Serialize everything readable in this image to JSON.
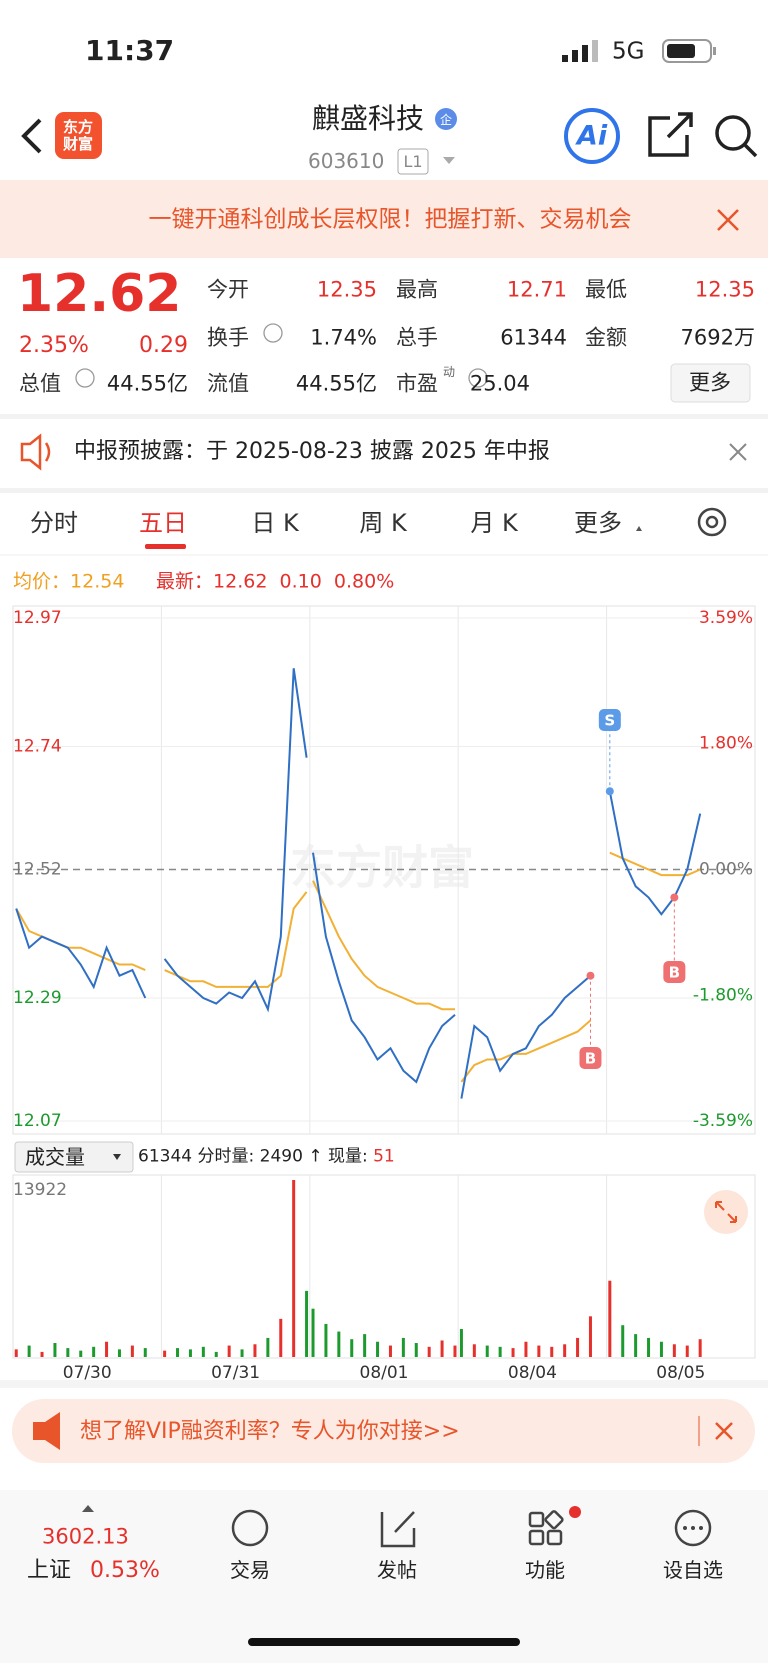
{
  "status_bar": {
    "time": "11:37",
    "network": "5G"
  },
  "header": {
    "logo": "东方财富",
    "title": "麒盛科技",
    "badge": "企",
    "code": "603610",
    "level": "L1",
    "ai": "Ai"
  },
  "banner": {
    "text": "一键开通科创成长层权限！把握打新、交易机会"
  },
  "quote": {
    "price": "12.62",
    "change_pct": "2.35%",
    "change": "0.29",
    "fields": [
      {
        "label": "今开",
        "value": "12.35"
      },
      {
        "label": "最高",
        "value": "12.71"
      },
      {
        "label": "最低",
        "value": "12.35"
      },
      {
        "label": "换手",
        "value": "1.74%"
      },
      {
        "label": "总手",
        "value": "61344"
      },
      {
        "label": "金额",
        "value": "7692万"
      },
      {
        "label": "总值",
        "value": "44.55亿"
      },
      {
        "label": "流值",
        "value": "44.55亿"
      },
      {
        "label": "市盈",
        "sup": "动",
        "value": "25.04"
      }
    ],
    "more": "更多"
  },
  "notice": {
    "text": "中报预披露：于 2025-08-23 披露 2025 年中报"
  },
  "tabs": {
    "items": [
      "分时",
      "五日",
      "日 K",
      "周 K",
      "月 K",
      "更多"
    ],
    "active": 1
  },
  "legend": {
    "avg_label": "均价：",
    "avg": "12.54",
    "last_label": "最新：",
    "last": "12.62",
    "change": "0.10",
    "pct": "0.80%"
  },
  "chart_data": {
    "type": "line",
    "watermark": "东方财富",
    "ylim": [
      12.07,
      12.97
    ],
    "yticks": [
      12.97,
      12.74,
      12.52,
      12.29,
      12.07
    ],
    "y2lim": [
      -3.59,
      3.59
    ],
    "y2ticks": [
      {
        "value": 3.59,
        "label": "3.59%"
      },
      {
        "value": 1.8,
        "label": "1.80%"
      },
      {
        "value": 0,
        "label": "0.00%"
      },
      {
        "value": -1.8,
        "label": "-1.80%"
      },
      {
        "value": -3.59,
        "label": "-3.59%"
      }
    ],
    "price_color": "#2f6fc4",
    "average_color": "#f2b035",
    "up_color": "#e5302c",
    "down_color": "#1d9a2e",
    "volume_ylim": [
      0,
      13922
    ],
    "volume_yticks": [
      13922
    ],
    "days": [
      {
        "label": "07/30",
        "price": [
          12.45,
          12.38,
          12.4,
          12.39,
          12.38,
          12.35,
          12.31,
          12.38,
          12.33,
          12.34,
          12.29
        ],
        "average": [
          12.45,
          12.41,
          12.4,
          12.39,
          12.38,
          12.38,
          12.37,
          12.36,
          12.35,
          12.35,
          12.34
        ],
        "volume": [
          600,
          900,
          400,
          1100,
          700,
          500,
          800,
          1200,
          600,
          900,
          700
        ]
      },
      {
        "label": "07/31",
        "price": [
          12.36,
          12.33,
          12.31,
          12.29,
          12.28,
          12.3,
          12.29,
          12.32,
          12.27,
          12.4,
          12.88,
          12.72
        ],
        "average": [
          12.34,
          12.33,
          12.32,
          12.32,
          12.31,
          12.31,
          12.31,
          12.31,
          12.31,
          12.33,
          12.45,
          12.48
        ],
        "volume": [
          500,
          700,
          600,
          800,
          400,
          900,
          600,
          1000,
          1500,
          3000,
          13922,
          5200
        ]
      },
      {
        "label": "08/01",
        "price": [
          12.55,
          12.4,
          12.32,
          12.25,
          12.22,
          12.18,
          12.2,
          12.16,
          12.14,
          12.2,
          12.24,
          12.26
        ],
        "average": [
          12.5,
          12.45,
          12.4,
          12.36,
          12.33,
          12.31,
          12.3,
          12.29,
          12.28,
          12.28,
          12.27,
          12.27
        ],
        "volume": [
          3800,
          2600,
          2000,
          1400,
          1800,
          1200,
          900,
          1500,
          1100,
          800,
          1300,
          900
        ]
      },
      {
        "label": "08/04",
        "price": [
          12.11,
          12.24,
          12.22,
          12.16,
          12.19,
          12.2,
          12.24,
          12.26,
          12.29,
          12.31,
          12.33
        ],
        "average": [
          12.14,
          12.17,
          12.18,
          12.18,
          12.19,
          12.19,
          12.2,
          12.21,
          12.22,
          12.23,
          12.25
        ],
        "volume": [
          2200,
          1000,
          900,
          800,
          700,
          1200,
          900,
          800,
          1000,
          1500,
          3200
        ]
      },
      {
        "label": "08/05",
        "price": [
          12.66,
          12.54,
          12.49,
          12.47,
          12.44,
          12.47,
          12.52,
          12.62
        ],
        "average": [
          12.55,
          12.54,
          12.53,
          12.52,
          12.51,
          12.51,
          12.51,
          12.52
        ],
        "volume": [
          6000,
          2500,
          1800,
          1500,
          1200,
          1000,
          900,
          1400
        ]
      }
    ],
    "trade_markers": [
      "S",
      "B",
      "B"
    ]
  },
  "volume_header": {
    "selector": "成交量",
    "total": "61344",
    "slice_label": "分时量:",
    "slice": "2490",
    "arrow": "↑",
    "now_label": "现量:",
    "now": "51"
  },
  "ad": {
    "text": "想了解VIP融资利率？专人为你对接>>"
  },
  "bottom": {
    "index_value": "3602.13",
    "index_name": "上证",
    "index_pct": "0.53%",
    "items": [
      "交易",
      "发帖",
      "功能",
      "设自选"
    ]
  }
}
